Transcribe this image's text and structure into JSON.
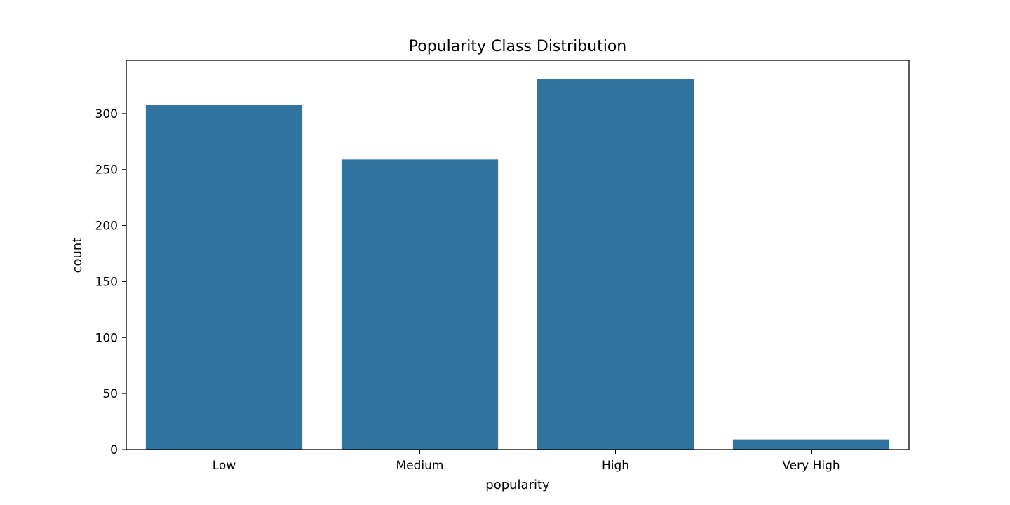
{
  "chart_data": {
    "type": "bar",
    "title": "Popularity Class Distribution",
    "xlabel": "popularity",
    "ylabel": "count",
    "categories": [
      "Low",
      "Medium",
      "High",
      "Very High"
    ],
    "values": [
      308,
      259,
      331,
      9
    ],
    "ylim": [
      0,
      347.5
    ],
    "yticks": [
      0,
      50,
      100,
      150,
      200,
      250,
      300
    ],
    "grid": false,
    "legend": "none",
    "bar_color": "#3274a1"
  }
}
